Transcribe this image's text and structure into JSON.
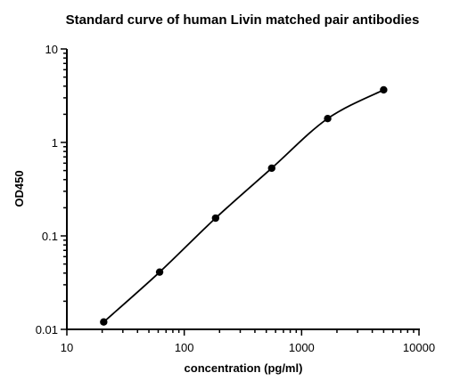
{
  "chart_data": {
    "type": "scatter",
    "title": "Standard curve of human Livin matched pair antibodies",
    "xlabel": "concentration (pg/ml)",
    "ylabel": "OD450",
    "x_scale": "log",
    "y_scale": "log",
    "xlim": [
      10,
      10000
    ],
    "ylim": [
      0.01,
      10
    ],
    "x_ticks": [
      {
        "value": 10,
        "label": "10"
      },
      {
        "value": 100,
        "label": "100"
      },
      {
        "value": 1000,
        "label": "1000"
      },
      {
        "value": 10000,
        "label": "10000"
      }
    ],
    "y_ticks": [
      {
        "value": 0.01,
        "label": "0.01"
      },
      {
        "value": 0.1,
        "label": "0.1"
      },
      {
        "value": 1,
        "label": "1"
      },
      {
        "value": 10,
        "label": "10"
      }
    ],
    "grid": false,
    "legend": "none",
    "fit_line": true,
    "series": [
      {
        "x": [
          20.6,
          61.7,
          185,
          556,
          1667,
          5000
        ],
        "y": [
          0.012,
          0.041,
          0.155,
          0.53,
          1.8,
          3.65
        ]
      }
    ],
    "colors": {
      "points": "#000000",
      "curve": "#000000",
      "axes": "#000000"
    }
  }
}
